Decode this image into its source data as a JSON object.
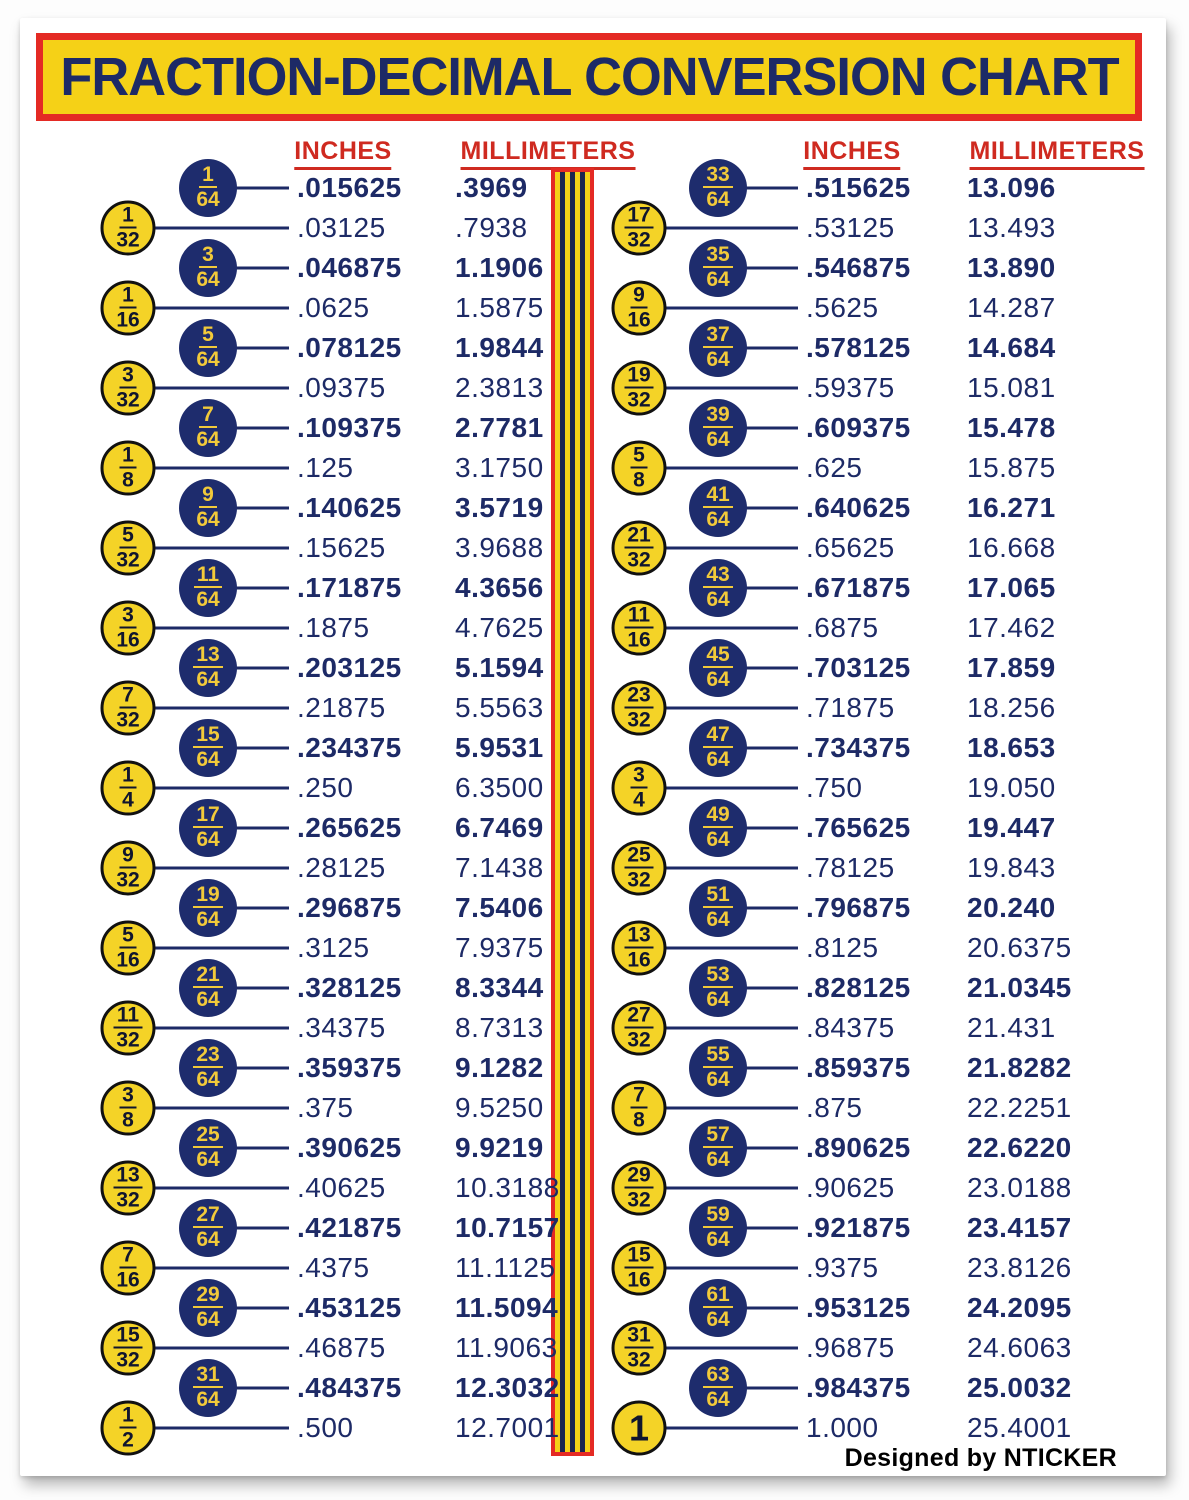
{
  "title": "FRACTION-DECIMAL CONVERSION CHART",
  "credit": "Designed by NTICKER",
  "headers": {
    "inches": "INCHES",
    "millimeters": "MILLIMETERS"
  },
  "colors": {
    "navy": "#1d2a66",
    "circle_navy_fill": "#1e2c6d",
    "yellow": "#f5d117",
    "circle_yellow_fill": "#f4d327",
    "border_red": "#e42a24",
    "header_red": "#cf2a20",
    "credit_black": "#000000"
  },
  "chart_data": {
    "type": "table",
    "title": "FRACTION-DECIMAL CONVERSION CHART",
    "columns": [
      "fraction",
      "inches",
      "millimeters"
    ],
    "left_rows": [
      [
        "1/64",
        ".015625",
        ".3969"
      ],
      [
        "1/32",
        ".03125",
        ".7938"
      ],
      [
        "3/64",
        ".046875",
        "1.1906"
      ],
      [
        "1/16",
        ".0625",
        "1.5875"
      ],
      [
        "5/64",
        ".078125",
        "1.9844"
      ],
      [
        "3/32",
        ".09375",
        "2.3813"
      ],
      [
        "7/64",
        ".109375",
        "2.7781"
      ],
      [
        "1/8",
        ".125",
        "3.1750"
      ],
      [
        "9/64",
        ".140625",
        "3.5719"
      ],
      [
        "5/32",
        ".15625",
        "3.9688"
      ],
      [
        "11/64",
        ".171875",
        "4.3656"
      ],
      [
        "3/16",
        ".1875",
        "4.7625"
      ],
      [
        "13/64",
        ".203125",
        "5.1594"
      ],
      [
        "7/32",
        ".21875",
        "5.5563"
      ],
      [
        "15/64",
        ".234375",
        "5.9531"
      ],
      [
        "1/4",
        ".250",
        "6.3500"
      ],
      [
        "17/64",
        ".265625",
        "6.7469"
      ],
      [
        "9/32",
        ".28125",
        "7.1438"
      ],
      [
        "19/64",
        ".296875",
        "7.5406"
      ],
      [
        "5/16",
        ".3125",
        "7.9375"
      ],
      [
        "21/64",
        ".328125",
        "8.3344"
      ],
      [
        "11/32",
        ".34375",
        "8.7313"
      ],
      [
        "23/64",
        ".359375",
        "9.1282"
      ],
      [
        "3/8",
        ".375",
        "9.5250"
      ],
      [
        "25/64",
        ".390625",
        "9.9219"
      ],
      [
        "13/32",
        ".40625",
        "10.3188"
      ],
      [
        "27/64",
        ".421875",
        "10.7157"
      ],
      [
        "7/16",
        ".4375",
        "11.1125"
      ],
      [
        "29/64",
        ".453125",
        "11.5094"
      ],
      [
        "15/32",
        ".46875",
        "11.9063"
      ],
      [
        "31/64",
        ".484375",
        "12.3032"
      ],
      [
        "1/2",
        ".500",
        "12.7001"
      ]
    ],
    "right_rows": [
      [
        "33/64",
        ".515625",
        "13.096"
      ],
      [
        "17/32",
        ".53125",
        "13.493"
      ],
      [
        "35/64",
        ".546875",
        "13.890"
      ],
      [
        "9/16",
        ".5625",
        "14.287"
      ],
      [
        "37/64",
        ".578125",
        "14.684"
      ],
      [
        "19/32",
        ".59375",
        "15.081"
      ],
      [
        "39/64",
        ".609375",
        "15.478"
      ],
      [
        "5/8",
        ".625",
        "15.875"
      ],
      [
        "41/64",
        ".640625",
        "16.271"
      ],
      [
        "21/32",
        ".65625",
        "16.668"
      ],
      [
        "43/64",
        ".671875",
        "17.065"
      ],
      [
        "11/16",
        ".6875",
        "17.462"
      ],
      [
        "45/64",
        ".703125",
        "17.859"
      ],
      [
        "23/32",
        ".71875",
        "18.256"
      ],
      [
        "47/64",
        ".734375",
        "18.653"
      ],
      [
        "3/4",
        ".750",
        "19.050"
      ],
      [
        "49/64",
        ".765625",
        "19.447"
      ],
      [
        "25/32",
        ".78125",
        "19.843"
      ],
      [
        "51/64",
        ".796875",
        "20.240"
      ],
      [
        "13/16",
        ".8125",
        "20.6375"
      ],
      [
        "53/64",
        ".828125",
        "21.0345"
      ],
      [
        "27/32",
        ".84375",
        "21.431"
      ],
      [
        "55/64",
        ".859375",
        "21.8282"
      ],
      [
        "7/8",
        ".875",
        "22.2251"
      ],
      [
        "57/64",
        ".890625",
        "22.6220"
      ],
      [
        "29/32",
        ".90625",
        "23.0188"
      ],
      [
        "59/64",
        ".921875",
        "23.4157"
      ],
      [
        "15/16",
        ".9375",
        "23.8126"
      ],
      [
        "61/64",
        ".953125",
        "24.2095"
      ],
      [
        "31/32",
        ".96875",
        "24.6063"
      ],
      [
        "63/64",
        ".984375",
        "25.0032"
      ],
      [
        "1",
        "1.000",
        "25.4001"
      ]
    ]
  }
}
